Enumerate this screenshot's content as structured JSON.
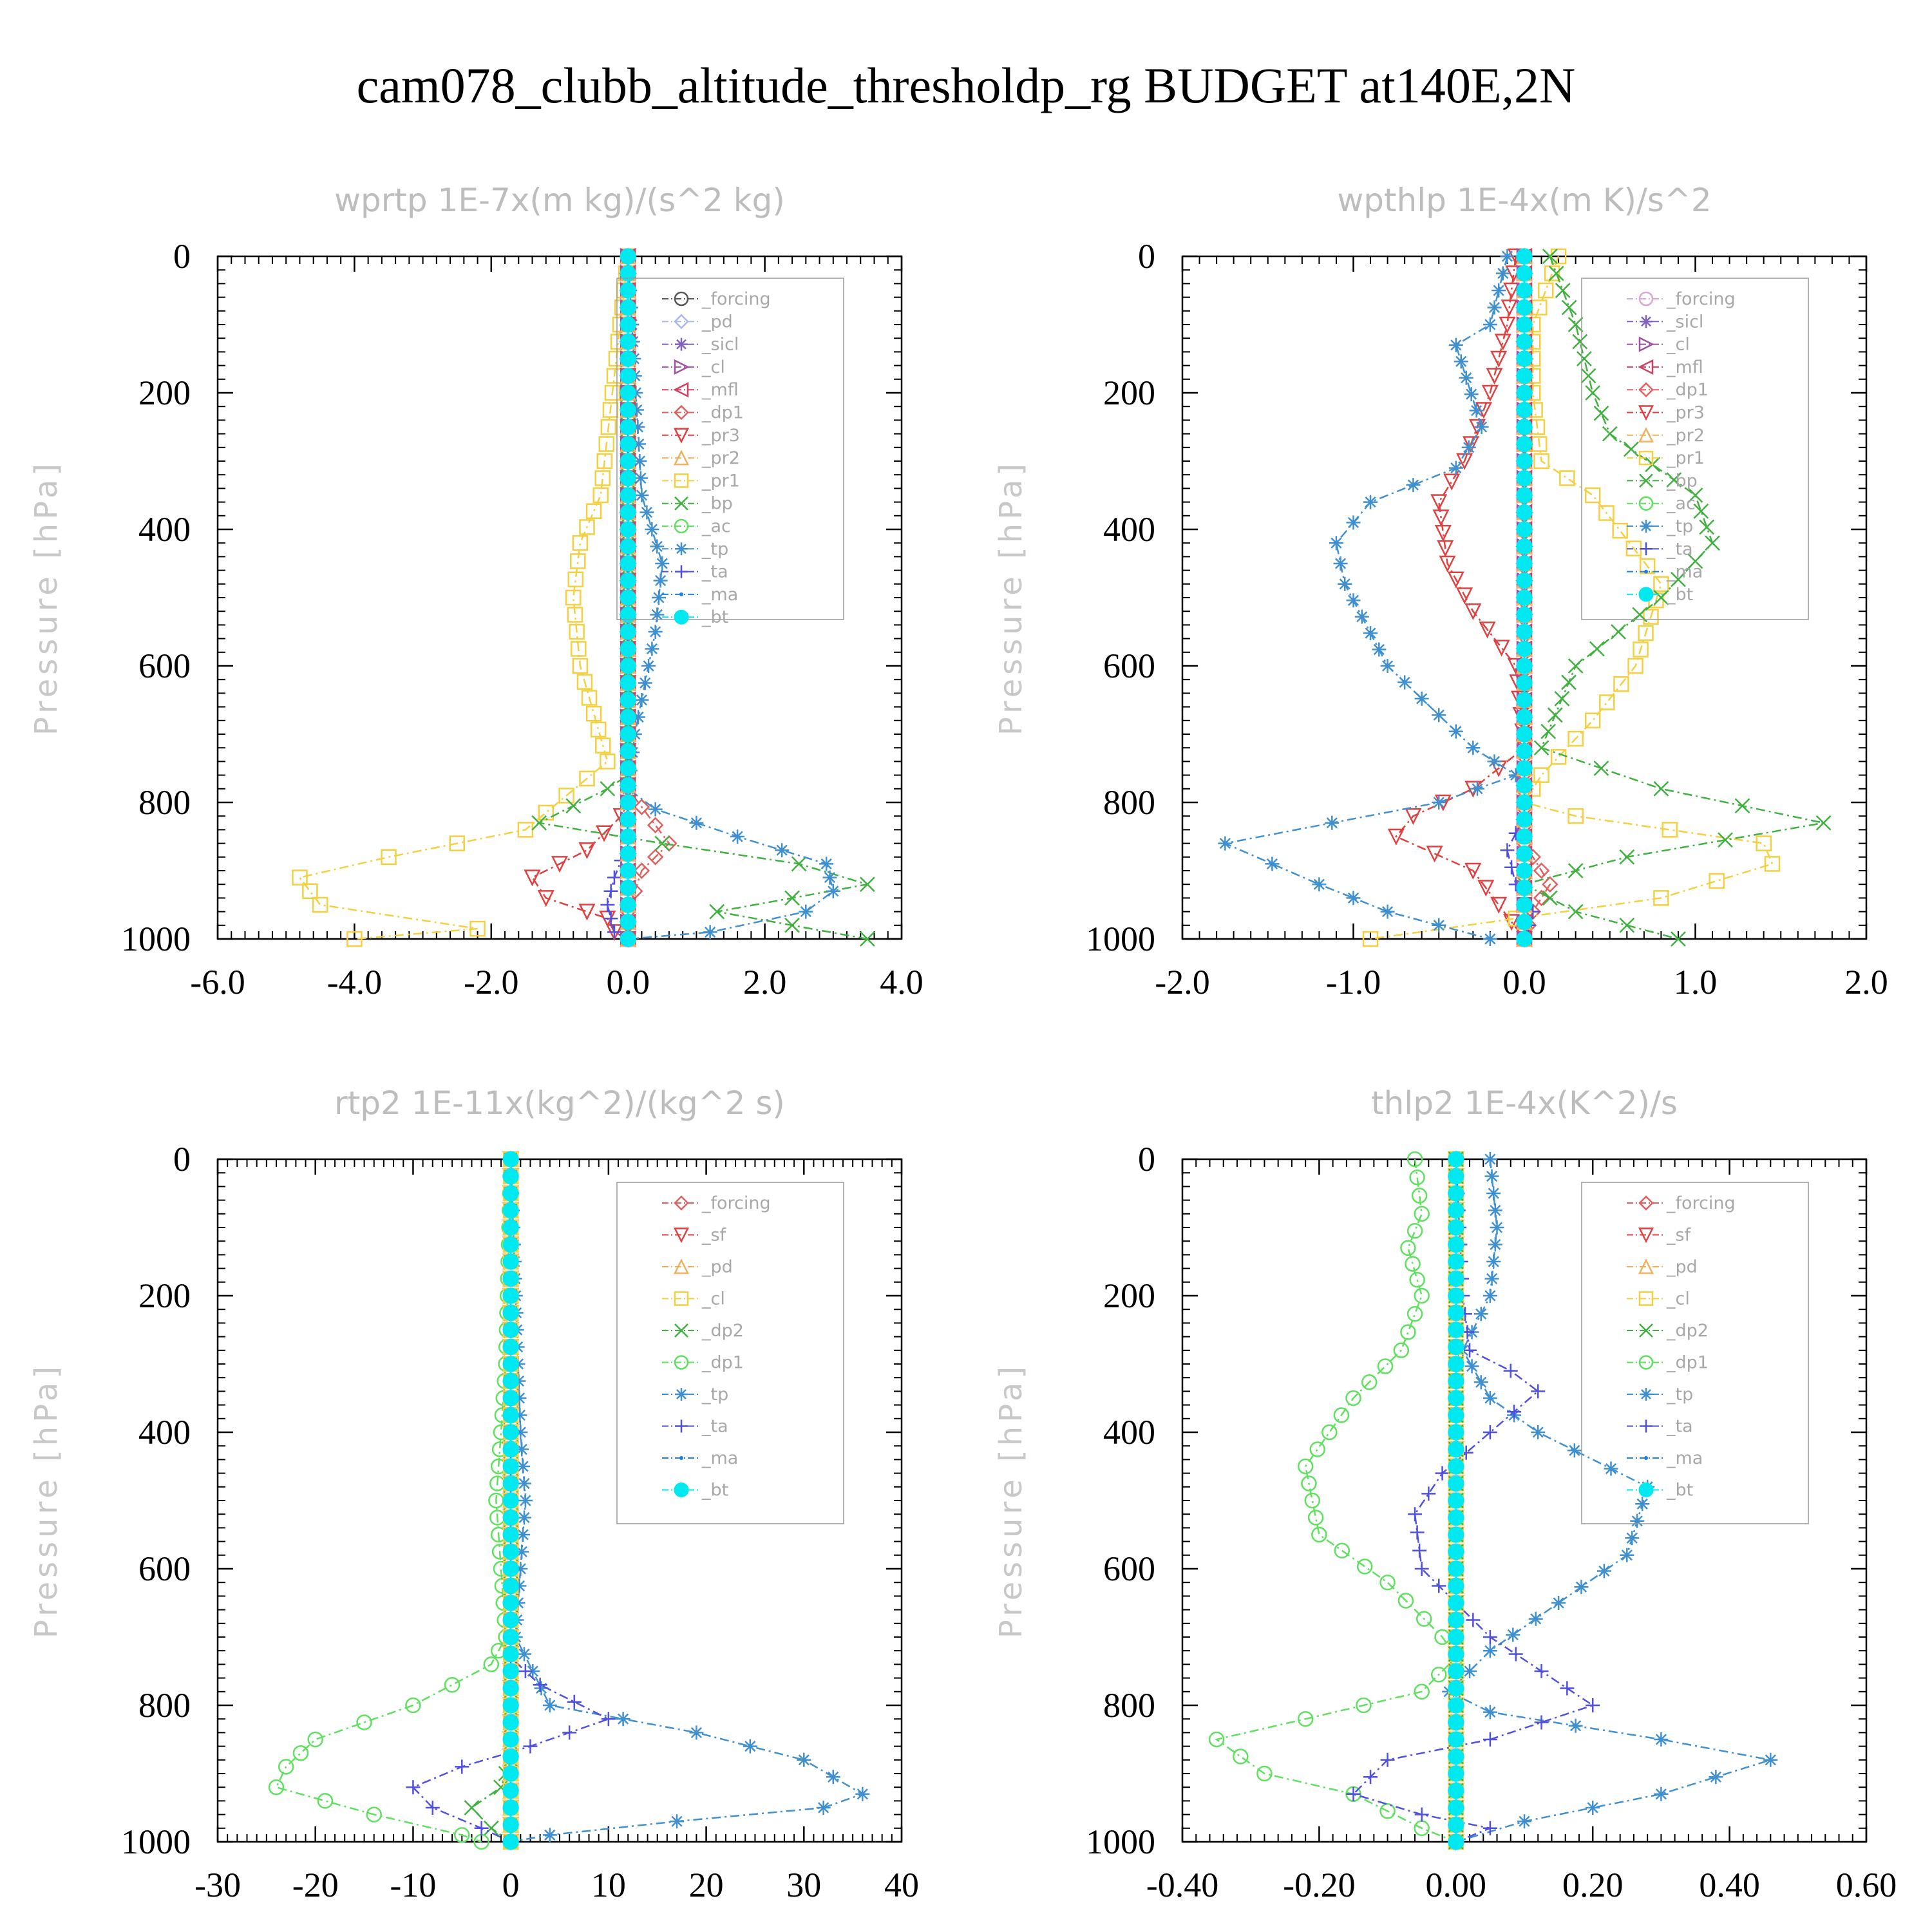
{
  "title": "cam078_clubb_altitude_thresholdp_rg  BUDGET at140E,2N",
  "chart_data": [
    {
      "type": "line",
      "title": "wprtp  1E-7x(m kg)/(s^2 kg)",
      "ylabel": "Pressure [hPa]",
      "xlim": [
        -6,
        4
      ],
      "ylim": [
        1000,
        0
      ],
      "xticks": [
        "-6.0",
        "-4.0",
        "-2.0",
        "0.0",
        "2.0",
        "4.0"
      ],
      "yticks": [
        "0",
        "200",
        "400",
        "600",
        "800",
        "1000"
      ],
      "legend": "top-right",
      "series": [
        {
          "name": "_forcing",
          "color": "#555555",
          "marker": "circle",
          "x": [
            0,
            0
          ],
          "y": [
            0,
            1000
          ]
        },
        {
          "name": "_pd",
          "color": "#a8b8e8",
          "marker": "diamond",
          "x": [
            0,
            0
          ],
          "y": [
            0,
            1000
          ]
        },
        {
          "name": "_sicl",
          "color": "#8060c0",
          "marker": "star",
          "x": [
            0,
            0
          ],
          "y": [
            0,
            1000
          ]
        },
        {
          "name": "_cl",
          "color": "#a050a0",
          "marker": "triangle-right",
          "x": [
            0,
            0
          ],
          "y": [
            0,
            1000
          ]
        },
        {
          "name": "_mfl",
          "color": "#d04060",
          "marker": "triangle-left",
          "x": [
            0,
            0
          ],
          "y": [
            0,
            1000
          ]
        },
        {
          "name": "_dp1",
          "color": "#e06060",
          "marker": "diamond",
          "x": [
            0,
            0,
            0.6,
            0.2,
            0,
            0
          ],
          "y": [
            0,
            780,
            860,
            900,
            960,
            1000
          ]
        },
        {
          "name": "_pr3",
          "color": "#e04040",
          "marker": "triangle-down",
          "x": [
            0,
            0,
            -0.1,
            -0.6,
            -1.4,
            -1.2,
            -0.6,
            -0.3,
            -0.2,
            0
          ],
          "y": [
            0,
            800,
            820,
            870,
            910,
            940,
            960,
            970,
            990,
            1000
          ]
        },
        {
          "name": "_pr2",
          "color": "#f0b060",
          "marker": "triangle-up",
          "x": [
            0,
            0
          ],
          "y": [
            0,
            1000
          ]
        },
        {
          "name": "_pr1",
          "color": "#f4d040",
          "marker": "square",
          "x": [
            0,
            -0.4,
            -0.7,
            -0.8,
            -0.7,
            -0.3,
            -1.5,
            -3.5,
            -4.8,
            -4.5,
            -2.2,
            -4.0
          ],
          "y": [
            0,
            350,
            420,
            500,
            600,
            740,
            840,
            880,
            910,
            950,
            985,
            1000
          ]
        },
        {
          "name": "_bp",
          "color": "#40b040",
          "marker": "x",
          "x": [
            0,
            0,
            -0.3,
            -1.3,
            0.5,
            2.5,
            3.5,
            1.3,
            3.5
          ],
          "y": [
            0,
            760,
            780,
            830,
            860,
            890,
            920,
            960,
            1000
          ]
        },
        {
          "name": "_ac",
          "color": "#60e060",
          "marker": "circle",
          "x": [
            0,
            0
          ],
          "y": [
            0,
            1000
          ]
        },
        {
          "name": "_tp",
          "color": "#4090d0",
          "marker": "asterisk",
          "x": [
            0,
            0.2,
            0.5,
            0.4,
            0.1,
            0,
            0.4,
            1.6,
            2.9,
            3.0,
            2.6,
            1.2,
            0
          ],
          "y": [
            0,
            350,
            450,
            550,
            700,
            780,
            810,
            850,
            890,
            930,
            960,
            990,
            1000
          ]
        },
        {
          "name": "_ta",
          "color": "#5050e0",
          "marker": "plus",
          "x": [
            0,
            0,
            -0.2,
            -0.3,
            -0.2,
            0
          ],
          "y": [
            0,
            860,
            910,
            950,
            990,
            1000
          ]
        },
        {
          "name": "_ma",
          "color": "#2080e0",
          "marker": "dot",
          "x": [
            0,
            0
          ],
          "y": [
            0,
            1000
          ]
        },
        {
          "name": "_bt",
          "color": "#00e8f0",
          "marker": "filled-circle",
          "x": [
            0,
            0
          ],
          "y": [
            0,
            1000
          ]
        }
      ]
    },
    {
      "type": "line",
      "title": "wpthlp  1E-4x(m K)/s^2",
      "ylabel": "Pressure [hPa]",
      "xlim": [
        -2,
        2
      ],
      "ylim": [
        1000,
        0
      ],
      "xticks": [
        "-2.0",
        "-1.0",
        "0.0",
        "1.0",
        "2.0"
      ],
      "yticks": [
        "0",
        "200",
        "400",
        "600",
        "800",
        "1000"
      ],
      "legend": "top-right",
      "series": [
        {
          "name": "_forcing",
          "color": "#d8a8d8",
          "marker": "circle",
          "x": [
            0,
            0
          ],
          "y": [
            0,
            1000
          ]
        },
        {
          "name": "_sicl",
          "color": "#8060c0",
          "marker": "star",
          "x": [
            0,
            0
          ],
          "y": [
            0,
            1000
          ]
        },
        {
          "name": "_cl",
          "color": "#a050a0",
          "marker": "triangle-right",
          "x": [
            0,
            0
          ],
          "y": [
            0,
            1000
          ]
        },
        {
          "name": "_mfl",
          "color": "#d04060",
          "marker": "triangle-left",
          "x": [
            0,
            0
          ],
          "y": [
            0,
            1000
          ]
        },
        {
          "name": "_dp1",
          "color": "#e06060",
          "marker": "diamond",
          "x": [
            0,
            0,
            0.1,
            0.15,
            0.05,
            0
          ],
          "y": [
            0,
            860,
            900,
            920,
            960,
            1000
          ]
        },
        {
          "name": "_pr3",
          "color": "#e04040",
          "marker": "triangle-down",
          "x": [
            -0.05,
            -0.1,
            -0.2,
            -0.35,
            -0.5,
            -0.45,
            -0.3,
            -0.05,
            0,
            -0.3,
            -0.65,
            -0.75,
            -0.3,
            0
          ],
          "y": [
            0,
            100,
            200,
            300,
            360,
            450,
            520,
            600,
            720,
            780,
            820,
            850,
            900,
            1000
          ]
        },
        {
          "name": "_pr2",
          "color": "#f0b060",
          "marker": "triangle-up",
          "x": [
            0,
            0
          ],
          "y": [
            0,
            1000
          ]
        },
        {
          "name": "_pr1",
          "color": "#f4d040",
          "marker": "square",
          "x": [
            0.2,
            0.05,
            0.05,
            0.1,
            0.4,
            0.8,
            0.65,
            0.4,
            0.1,
            0,
            0.3,
            1.4,
            1.45,
            0.8,
            -0.9
          ],
          "y": [
            0,
            100,
            200,
            300,
            350,
            480,
            600,
            680,
            760,
            800,
            820,
            860,
            890,
            940,
            1000
          ]
        },
        {
          "name": "_bp",
          "color": "#40b040",
          "marker": "x",
          "x": [
            0.15,
            0.3,
            0.4,
            0.5,
            1.0,
            1.1,
            0.8,
            0.3,
            0.1,
            0.8,
            1.75,
            0.6,
            0,
            0.3,
            0.9
          ],
          "y": [
            0,
            100,
            200,
            260,
            350,
            420,
            500,
            600,
            720,
            780,
            830,
            880,
            920,
            960,
            1000
          ]
        },
        {
          "name": "_ac",
          "color": "#60e060",
          "marker": "circle",
          "x": [
            0,
            0
          ],
          "y": [
            0,
            1000
          ]
        },
        {
          "name": "_tp",
          "color": "#4090d0",
          "marker": "asterisk",
          "x": [
            -0.1,
            -0.2,
            -0.4,
            -0.25,
            -0.4,
            -0.9,
            -1.1,
            -1.05,
            -0.8,
            -0.3,
            -0.05,
            -0.5,
            -1.75,
            -1.2,
            -0.8,
            -0.2
          ],
          "y": [
            0,
            100,
            130,
            250,
            310,
            360,
            420,
            480,
            600,
            720,
            760,
            800,
            860,
            920,
            960,
            1000
          ]
        },
        {
          "name": "_ta",
          "color": "#5050e0",
          "marker": "plus",
          "x": [
            0,
            0,
            -0.1,
            -0.05,
            0.05,
            0
          ],
          "y": [
            0,
            820,
            870,
            920,
            960,
            1000
          ]
        },
        {
          "name": "_ma",
          "color": "#2080e0",
          "marker": "dot",
          "x": [
            0,
            0
          ],
          "y": [
            0,
            1000
          ]
        },
        {
          "name": "_bt",
          "color": "#00e8f0",
          "marker": "filled-circle",
          "x": [
            0,
            0
          ],
          "y": [
            0,
            1000
          ]
        }
      ]
    },
    {
      "type": "line",
      "title": "rtp2  1E-11x(kg^2)/(kg^2 s)",
      "ylabel": "Pressure [hPa]",
      "xlim": [
        -30,
        40
      ],
      "ylim": [
        1000,
        0
      ],
      "xticks": [
        "-30",
        "-20",
        "-10",
        "0",
        "10",
        "20",
        "30",
        "40"
      ],
      "yticks": [
        "0",
        "200",
        "400",
        "600",
        "800",
        "1000"
      ],
      "legend": "top-right",
      "series": [
        {
          "name": "_forcing",
          "color": "#e06060",
          "marker": "diamond",
          "x": [
            0,
            0
          ],
          "y": [
            0,
            1000
          ]
        },
        {
          "name": "_sf",
          "color": "#e04040",
          "marker": "triangle-down",
          "x": [
            0,
            0
          ],
          "y": [
            0,
            1000
          ]
        },
        {
          "name": "_pd",
          "color": "#f0b060",
          "marker": "triangle-up",
          "x": [
            0,
            0
          ],
          "y": [
            0,
            1000
          ]
        },
        {
          "name": "_cl",
          "color": "#f4d040",
          "marker": "square",
          "x": [
            0,
            0
          ],
          "y": [
            0,
            1000
          ]
        },
        {
          "name": "_dp2",
          "color": "#40b040",
          "marker": "x",
          "x": [
            0,
            0,
            -1,
            -4,
            -2,
            0
          ],
          "y": [
            0,
            880,
            920,
            950,
            980,
            1000
          ]
        },
        {
          "name": "_dp1",
          "color": "#60e060",
          "marker": "circle",
          "x": [
            0,
            -0.5,
            -1,
            -1.5,
            -1,
            -0.5,
            -2,
            -10,
            -20,
            -23,
            -24,
            -14,
            -5,
            -3
          ],
          "y": [
            0,
            300,
            400,
            500,
            600,
            700,
            740,
            800,
            850,
            890,
            920,
            960,
            990,
            1000
          ]
        },
        {
          "name": "_tp",
          "color": "#4090d0",
          "marker": "asterisk",
          "x": [
            0,
            1,
            1.5,
            1,
            0.5,
            4,
            19,
            30,
            36,
            32,
            17,
            4,
            0
          ],
          "y": [
            0,
            400,
            500,
            600,
            700,
            800,
            840,
            880,
            930,
            950,
            970,
            990,
            1000
          ]
        },
        {
          "name": "_ta",
          "color": "#5050e0",
          "marker": "plus",
          "x": [
            0,
            0,
            3,
            10,
            2,
            -5,
            -10,
            -8,
            -3,
            0
          ],
          "y": [
            0,
            730,
            770,
            820,
            860,
            890,
            920,
            950,
            980,
            1000
          ]
        },
        {
          "name": "_ma",
          "color": "#2080e0",
          "marker": "dot",
          "x": [
            0,
            0
          ],
          "y": [
            0,
            1000
          ]
        },
        {
          "name": "_bt",
          "color": "#00e8f0",
          "marker": "filled-circle",
          "x": [
            0,
            0
          ],
          "y": [
            0,
            1000
          ]
        }
      ]
    },
    {
      "type": "line",
      "title": "thlp2  1E-4x(K^2)/s",
      "ylabel": "Pressure [hPa]",
      "xlim": [
        -0.4,
        0.6
      ],
      "ylim": [
        1000,
        0
      ],
      "xticks": [
        "-0.40",
        "-0.20",
        "0.00",
        "0.20",
        "0.40",
        "0.60"
      ],
      "yticks": [
        "0",
        "200",
        "400",
        "600",
        "800",
        "1000"
      ],
      "legend": "top-right",
      "series": [
        {
          "name": "_forcing",
          "color": "#e06060",
          "marker": "diamond",
          "x": [
            0,
            0
          ],
          "y": [
            0,
            1000
          ]
        },
        {
          "name": "_sf",
          "color": "#e04040",
          "marker": "triangle-down",
          "x": [
            0,
            0
          ],
          "y": [
            0,
            1000
          ]
        },
        {
          "name": "_pd",
          "color": "#f0b060",
          "marker": "triangle-up",
          "x": [
            0,
            0
          ],
          "y": [
            0,
            1000
          ]
        },
        {
          "name": "_cl",
          "color": "#f4d040",
          "marker": "square",
          "x": [
            0,
            0
          ],
          "y": [
            0,
            1000
          ]
        },
        {
          "name": "_dp2",
          "color": "#40b040",
          "marker": "x",
          "x": [
            0,
            0
          ],
          "y": [
            0,
            1000
          ]
        },
        {
          "name": "_dp1",
          "color": "#60e060",
          "marker": "circle",
          "x": [
            -0.06,
            -0.05,
            -0.07,
            -0.05,
            -0.08,
            -0.15,
            -0.22,
            -0.2,
            -0.1,
            -0.02,
            0,
            -0.05,
            -0.22,
            -0.35,
            -0.28,
            -0.15,
            -0.05,
            0
          ],
          "y": [
            0,
            80,
            130,
            200,
            280,
            350,
            450,
            550,
            620,
            700,
            730,
            780,
            820,
            850,
            900,
            930,
            980,
            1000
          ]
        },
        {
          "name": "_tp",
          "color": "#4090d0",
          "marker": "asterisk",
          "x": [
            0.05,
            0.06,
            0.05,
            0.01,
            0.05,
            0.12,
            0.28,
            0.25,
            0.15,
            0.05,
            -0.01,
            0.05,
            0.3,
            0.46,
            0.3,
            0.1,
            0
          ],
          "y": [
            0,
            100,
            200,
            280,
            350,
            400,
            480,
            580,
            650,
            720,
            780,
            810,
            850,
            880,
            930,
            970,
            1000
          ]
        },
        {
          "name": "_ta",
          "color": "#5050e0",
          "marker": "plus",
          "x": [
            0,
            0.01,
            0.02,
            0.08,
            0.12,
            0.05,
            -0.02,
            -0.06,
            -0.05,
            0.05,
            0.2,
            0.05,
            -0.1,
            -0.15,
            -0.05,
            0.05,
            0
          ],
          "y": [
            0,
            200,
            280,
            310,
            340,
            400,
            460,
            520,
            600,
            700,
            800,
            850,
            880,
            930,
            960,
            980,
            1000
          ]
        },
        {
          "name": "_ma",
          "color": "#2080e0",
          "marker": "dot",
          "x": [
            0,
            0
          ],
          "y": [
            0,
            1000
          ]
        },
        {
          "name": "_bt",
          "color": "#00e8f0",
          "marker": "filled-circle",
          "x": [
            0,
            0
          ],
          "y": [
            0,
            1000
          ]
        }
      ]
    }
  ]
}
